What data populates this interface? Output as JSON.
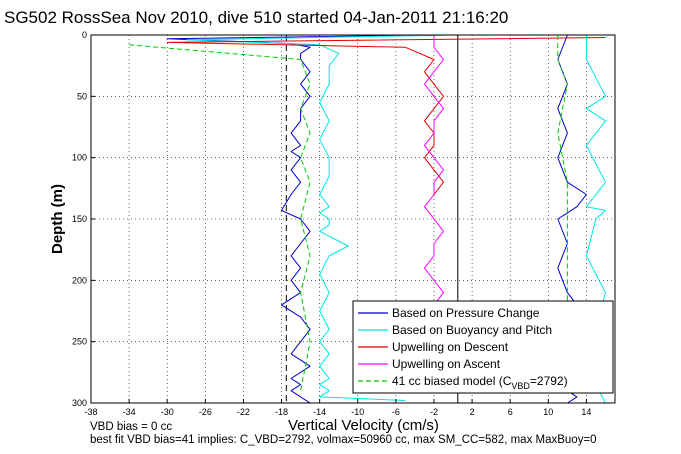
{
  "chart_data": {
    "type": "line",
    "title": "SG502 RossSea Nov 2010, dive 510 started 04-Jan-2011 21:16:20",
    "xlabel": "Vertical Velocity (cm/s)",
    "ylabel": "Depth (m)",
    "xlim": [
      -38,
      17
    ],
    "ylim": [
      0,
      300
    ],
    "y_reversed": true,
    "grid": true,
    "legend_position": "bottom-right",
    "x_ticks": [
      "-38",
      "-34",
      "-30",
      "-26",
      "-22",
      "-18",
      "-14",
      "-10",
      "-6",
      "-2",
      "2",
      "6",
      "10",
      "14"
    ],
    "y_ticks": [
      "0",
      "50",
      "100",
      "150",
      "200",
      "250",
      "300"
    ],
    "vertical_lines": [
      {
        "x": -17.5,
        "style": "dashed"
      },
      {
        "x": 0.5,
        "style": "solid"
      }
    ],
    "series": [
      {
        "name": "Based on Pressure Change",
        "color": "#0000cc",
        "width": 1,
        "x": [
          -2,
          -30,
          -17,
          -15,
          -16,
          -16,
          -15,
          -16,
          -15,
          -16,
          -16,
          -17,
          -16,
          -17,
          -16,
          -17,
          -16,
          -17,
          -18,
          -16,
          -15,
          -16,
          -17,
          -16,
          -17,
          -16,
          -18,
          -16,
          -15,
          -16,
          -17,
          -16,
          -15,
          -16,
          -17,
          -16,
          -17,
          -16,
          -15,
          -16,
          -17,
          -16,
          -18
        ],
        "y": [
          0,
          3,
          7,
          10,
          15,
          20,
          30,
          40,
          50,
          60,
          70,
          80,
          90,
          95,
          100,
          110,
          120,
          130,
          143,
          150,
          160,
          170,
          180,
          190,
          200,
          210,
          220,
          230,
          240,
          250,
          260,
          265,
          270,
          275,
          280,
          285,
          290,
          295,
          300,
          300,
          300,
          300,
          300
        ]
      },
      {
        "name": "Based on Buoyancy and Pitch",
        "color": "#00e5e5",
        "width": 1,
        "x": [
          0,
          -28,
          -14,
          -12,
          -13,
          -13,
          -14,
          -13,
          -14,
          -13,
          -13,
          -14,
          -13,
          -14,
          -13,
          -13,
          -14,
          -11,
          -13,
          -14,
          -13,
          -14,
          -13,
          -14,
          -13,
          -14,
          -13,
          -14,
          -13,
          -14,
          -5
        ],
        "y": [
          0,
          4,
          8,
          15,
          25,
          40,
          55,
          70,
          85,
          100,
          115,
          130,
          140,
          145,
          150,
          155,
          160,
          172,
          180,
          195,
          210,
          225,
          240,
          250,
          260,
          270,
          280,
          285,
          290,
          295,
          298
        ]
      },
      {
        "name": "Upwelling on Descent",
        "color": "#e60000",
        "width": 1,
        "x": [
          16,
          -30,
          -5,
          -2,
          -3,
          -2,
          -1,
          -2,
          -3,
          -2,
          -2,
          -3,
          -2,
          -1,
          -2
        ],
        "y": [
          2,
          6,
          10,
          20,
          30,
          40,
          50,
          60,
          70,
          80,
          90,
          100,
          110,
          120,
          130
        ]
      },
      {
        "name": "Upwelling on Ascent",
        "color": "#ff00ff",
        "width": 1,
        "x": [
          -2,
          -2,
          -1,
          -2,
          -3,
          -2,
          -1,
          -2,
          -2,
          -3,
          -2,
          -1,
          -2,
          -2,
          -3,
          -2,
          -1,
          -2,
          -2,
          -3,
          -2,
          -1,
          -2,
          -2,
          -3,
          -2,
          -1,
          -2,
          -2,
          -3
        ],
        "y": [
          0,
          10,
          20,
          30,
          40,
          50,
          60,
          70,
          80,
          90,
          100,
          110,
          120,
          130,
          140,
          150,
          160,
          170,
          180,
          190,
          200,
          210,
          220,
          230,
          240,
          250,
          260,
          270,
          280,
          290
        ]
      },
      {
        "name": "41 cc biased model (C",
        "color": "#00cc00",
        "width": 1,
        "dashed": true,
        "x": [
          -34,
          -16,
          -15,
          -16,
          -15,
          -16,
          -15,
          -16,
          -15,
          -16,
          -15,
          -16
        ],
        "y": [
          8,
          20,
          40,
          60,
          80,
          100,
          120,
          150,
          180,
          210,
          250,
          290
        ]
      },
      {
        "color": "#0000cc",
        "width": 1,
        "x": [
          12,
          11,
          12,
          11,
          12,
          11,
          12,
          14,
          13,
          12,
          11,
          12,
          11,
          12,
          13,
          12,
          11,
          12,
          11,
          12,
          13,
          12
        ],
        "y": [
          0,
          20,
          40,
          60,
          80,
          100,
          120,
          130,
          140,
          145,
          150,
          170,
          190,
          210,
          220,
          240,
          260,
          270,
          280,
          290,
          295,
          300
        ]
      },
      {
        "color": "#00e5e5",
        "width": 1,
        "x": [
          14,
          14,
          16,
          14,
          16,
          14,
          15,
          16,
          14,
          16,
          15,
          14,
          16,
          15,
          14,
          16
        ],
        "y": [
          0,
          20,
          50,
          60,
          70,
          90,
          105,
          120,
          140,
          143,
          150,
          180,
          210,
          240,
          270,
          300
        ]
      },
      {
        "color": "#00cc00",
        "width": 1,
        "dashed": true,
        "x": [
          11,
          11,
          12,
          11,
          12,
          12,
          12,
          12
        ],
        "y": [
          0,
          20,
          40,
          80,
          120,
          160,
          200,
          250
        ]
      }
    ],
    "legend": {
      "entries": [
        "Based on Pressure Change",
        "Based on Buoyancy and Pitch",
        "Upwelling on Descent",
        "Upwelling on Ascent",
        "41 cc biased model (C"
      ],
      "model_sub": "VBD",
      "model_tail": "=2792)"
    },
    "footnotes": [
      "VBD bias = 0 cc",
      "best fit VBD bias=41 implies: C_VBD=2792, volmax=50960 cc, max SM_CC=582, max MaxBuoy=0"
    ]
  }
}
